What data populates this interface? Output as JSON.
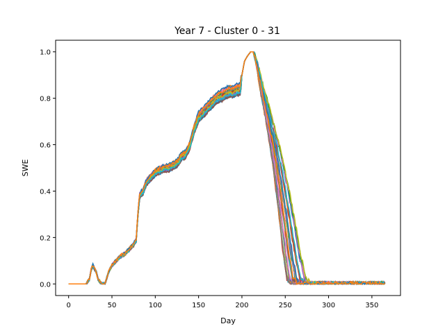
{
  "chart_data": {
    "type": "line",
    "title": "Year 7 - Cluster 0 - 31",
    "xlabel": "Day",
    "ylabel": "SWE",
    "xlim": [
      -15,
      383
    ],
    "ylim": [
      -0.05,
      1.05
    ],
    "x_ticks": [
      0,
      50,
      100,
      150,
      200,
      250,
      300,
      350
    ],
    "y_ticks": [
      0.0,
      0.2,
      0.4,
      0.6,
      0.8,
      1.0
    ],
    "x_tick_labels": [
      "0",
      "50",
      "100",
      "150",
      "200",
      "250",
      "300",
      "350"
    ],
    "y_tick_labels": [
      "0.0",
      "0.2",
      "0.4",
      "0.6",
      "0.8",
      "1.0"
    ],
    "grid": false,
    "legend": "none",
    "series_count": 32,
    "palette": [
      "#1f77b4",
      "#ff7f0e",
      "#2ca02c",
      "#d62728",
      "#9467bd",
      "#8c564b",
      "#e377c2",
      "#7f7f7f",
      "#bcbd22",
      "#17becf"
    ],
    "base_curve": {
      "x": [
        0,
        20,
        24,
        26,
        28,
        32,
        34,
        38,
        42,
        46,
        50,
        55,
        60,
        65,
        70,
        75,
        78,
        80,
        82,
        86,
        90,
        95,
        100,
        105,
        110,
        115,
        120,
        125,
        130,
        135,
        140,
        145,
        150,
        155,
        160,
        165,
        170,
        175,
        180,
        185,
        190,
        195,
        198,
        200,
        203,
        206,
        210,
        213,
        215,
        218,
        222,
        228,
        235,
        240,
        245,
        250,
        255,
        260,
        266,
        270,
        300,
        330,
        365
      ],
      "y": [
        0.0,
        0.0,
        0.02,
        0.06,
        0.08,
        0.05,
        0.02,
        0.0,
        0.0,
        0.05,
        0.08,
        0.1,
        0.12,
        0.13,
        0.15,
        0.17,
        0.19,
        0.3,
        0.38,
        0.4,
        0.44,
        0.46,
        0.48,
        0.49,
        0.5,
        0.5,
        0.51,
        0.52,
        0.55,
        0.56,
        0.6,
        0.67,
        0.72,
        0.74,
        0.76,
        0.78,
        0.8,
        0.81,
        0.82,
        0.83,
        0.83,
        0.84,
        0.84,
        0.9,
        0.96,
        0.98,
        1.0,
        1.0,
        0.98,
        0.93,
        0.85,
        0.75,
        0.62,
        0.52,
        0.4,
        0.27,
        0.13,
        0.02,
        0.0,
        0.0,
        0.0,
        0.0,
        0.0
      ]
    }
  }
}
